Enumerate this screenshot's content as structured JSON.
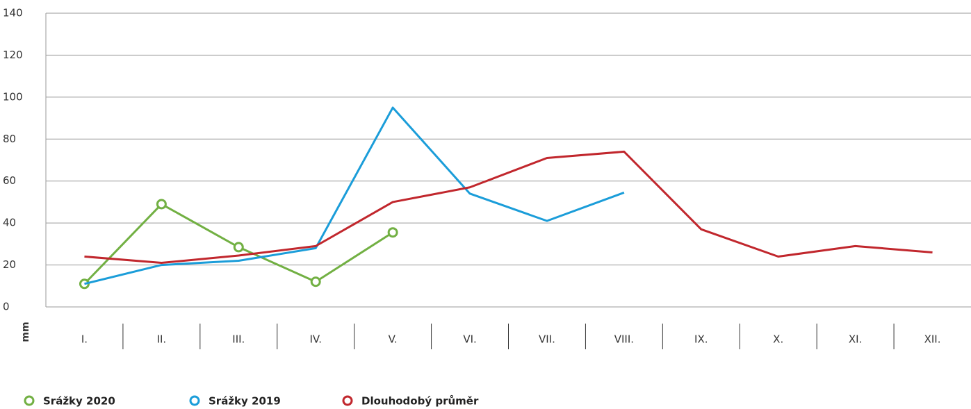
{
  "chart_data": {
    "type": "line",
    "y_label": "mm",
    "categories": [
      "I.",
      "II.",
      "III.",
      "IV.",
      "V.",
      "VI.",
      "VII.",
      "VIII.",
      "IX.",
      "X.",
      "XI.",
      "XII."
    ],
    "series": [
      {
        "name": "Srážky 2020",
        "color": "#72b043",
        "markers": true,
        "values": [
          11,
          49,
          28.5,
          12,
          35.5,
          null,
          null,
          null,
          null,
          null,
          null,
          null
        ]
      },
      {
        "name": "Srážky 2019",
        "color": "#1b9dd9",
        "markers": false,
        "values": [
          11,
          20,
          22,
          28,
          95,
          54,
          41,
          54.5,
          null,
          null,
          null,
          null
        ]
      },
      {
        "name": "Dlouhodobý průměr",
        "color": "#c1272d",
        "markers": false,
        "values": [
          24,
          21,
          24.5,
          29,
          50,
          57,
          71,
          74,
          37,
          24,
          29,
          26
        ]
      }
    ],
    "ylim": [
      0,
      140
    ],
    "yticks": [
      0,
      20,
      40,
      60,
      80,
      100,
      120,
      140
    ],
    "grid": true
  }
}
